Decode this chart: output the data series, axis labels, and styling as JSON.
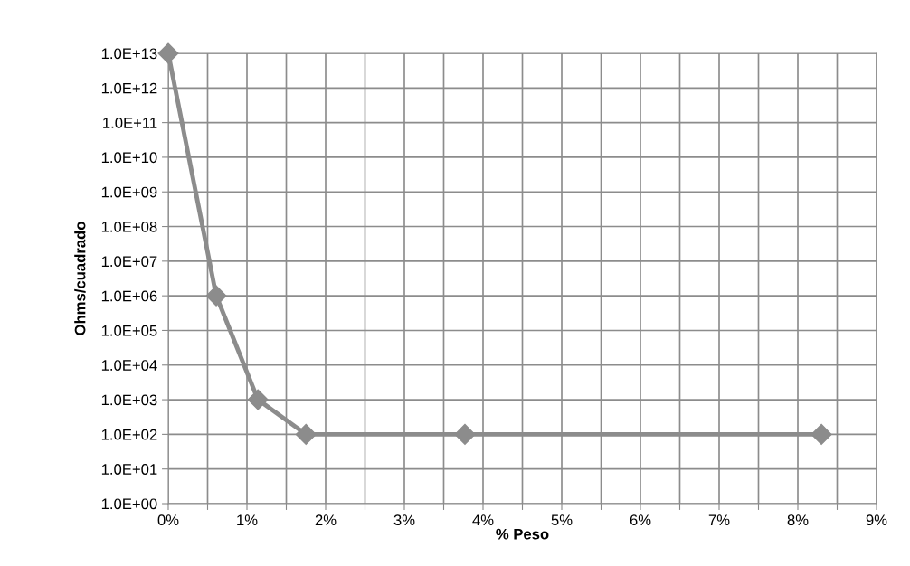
{
  "chart_data": {
    "type": "line",
    "xlabel": "% Peso",
    "ylabel": "Ohms/cuadrado",
    "series": [
      {
        "color": "#8c8c8c",
        "x": [
          0,
          0.61,
          1.14,
          1.75,
          3.77,
          8.3
        ],
        "values": [
          10000000000000.0,
          1000000.0,
          1000.0,
          100.0,
          100.0,
          100.0
        ]
      }
    ],
    "log": "y",
    "xlim": [
      0,
      9
    ],
    "xticks": [
      {
        "value": 0,
        "label": "0%"
      },
      {
        "value": 0.5,
        "label": null
      },
      {
        "value": 1,
        "label": "1%"
      },
      {
        "value": 1.5,
        "label": null
      },
      {
        "value": 2,
        "label": "2%"
      },
      {
        "value": 2.5,
        "label": null
      },
      {
        "value": 3,
        "label": "3%"
      },
      {
        "value": 3.5,
        "label": null
      },
      {
        "value": 4,
        "label": "4%"
      },
      {
        "value": 4.5,
        "label": null
      },
      {
        "value": 5,
        "label": "5%"
      },
      {
        "value": 5.5,
        "label": null
      },
      {
        "value": 6,
        "label": "6%"
      },
      {
        "value": 6.5,
        "label": null
      },
      {
        "value": 7,
        "label": "7%"
      },
      {
        "value": 7.5,
        "label": null
      },
      {
        "value": 8,
        "label": "8%"
      },
      {
        "value": 8.5,
        "label": null
      },
      {
        "value": 9,
        "label": "9%"
      }
    ],
    "ylim": [
      1,
      10000000000000.0
    ],
    "yticks": [
      {
        "value": 1,
        "label": "1.0E+00"
      },
      {
        "value": 10.0,
        "label": "1.0E+01"
      },
      {
        "value": 100.0,
        "label": "1.0E+02"
      },
      {
        "value": 1000.0,
        "label": "1.0E+03"
      },
      {
        "value": 10000.0,
        "label": "1.0E+04"
      },
      {
        "value": 100000.0,
        "label": "1.0E+05"
      },
      {
        "value": 1000000.0,
        "label": "1.0E+06"
      },
      {
        "value": 10000000.0,
        "label": "1.0E+07"
      },
      {
        "value": 100000000.0,
        "label": "1.0E+08"
      },
      {
        "value": 1000000000.0,
        "label": "1.0E+09"
      },
      {
        "value": 10000000000.0,
        "label": "1.0E+10"
      },
      {
        "value": 100000000000.0,
        "label": "1.0E+11"
      },
      {
        "value": 1000000000000.0,
        "label": "1.0E+12"
      },
      {
        "value": 10000000000000.0,
        "label": "1.0E+13"
      }
    ],
    "grid": true,
    "marker": "diamond",
    "line_style": "solid",
    "legend": false
  }
}
